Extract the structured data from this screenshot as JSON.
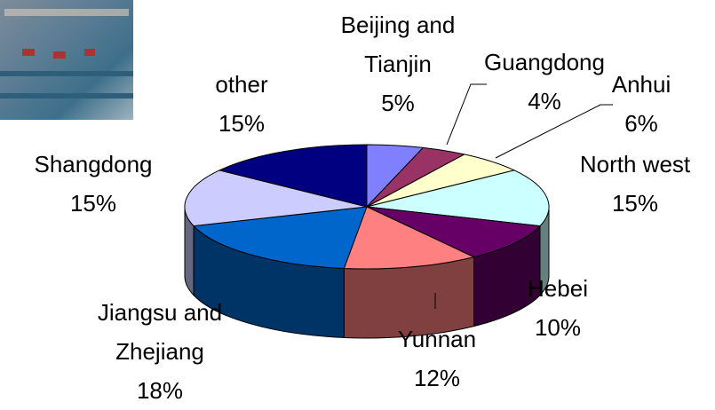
{
  "chart_data": {
    "type": "pie",
    "categories": [
      "Beijing and Tianjin",
      "Guangdong",
      "Anhui",
      "North west",
      "Hebei",
      "Yunnan",
      "Jiangsu and Zhejiang",
      "Shangdong",
      "other"
    ],
    "values": [
      5,
      4,
      6,
      15,
      10,
      12,
      18,
      15,
      15
    ],
    "value_labels": [
      "5%",
      "4%",
      "6%",
      "15%",
      "10%",
      "12%",
      "18%",
      "15%",
      "15%"
    ],
    "colors": [
      "#8080ff",
      "#993366",
      "#ffffcc",
      "#ccffff",
      "#660066",
      "#ff8080",
      "#0066cc",
      "#ccccff",
      "#000080"
    ]
  }
}
